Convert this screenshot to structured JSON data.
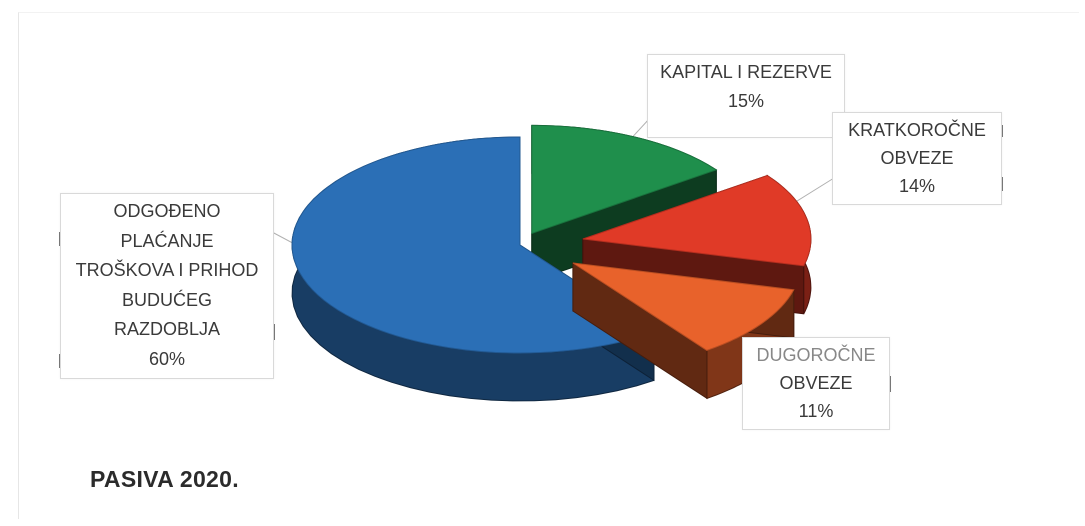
{
  "chart_data": {
    "type": "pie",
    "title": "PASIVA 2020.",
    "slices": [
      {
        "label": "KAPITAL I REZERVE",
        "value": 15,
        "value_text": "15%",
        "color": "#1f8f4c"
      },
      {
        "label": "KRATKOROČNE OBVEZE",
        "value": 14,
        "value_text": "14%",
        "color": "#e03a27"
      },
      {
        "label": "DUGOROČNE OBVEZE",
        "value": 11,
        "value_text": "11%",
        "color": "#e8622b"
      },
      {
        "label": "ODGOĐENO PLAĆANJE TROŠKOVA I PRIHOD BUDUĆEG RAZDOBLJA",
        "value": 60,
        "value_text": "60%",
        "color": "#2b6fb6"
      }
    ],
    "style": "3d-exploded",
    "legend": "none",
    "data_labels": "callouts"
  },
  "labels": {
    "kapital_lines": [
      "KAPITAL I REZERVE",
      "15%"
    ],
    "kratkorocne_lines": [
      "KRATKOROČNE",
      "OBVEZE",
      "14%"
    ],
    "dugorocne_lines": [
      "DUGOROČNE",
      "OBVEZE",
      "11%"
    ],
    "odgodeno_lines": [
      "ODGOĐENO",
      "PLAĆANJE",
      "TROŠKOVA I PRIHOD",
      "BUDUĆEG",
      "RAZDOBLJA",
      "60%"
    ]
  }
}
